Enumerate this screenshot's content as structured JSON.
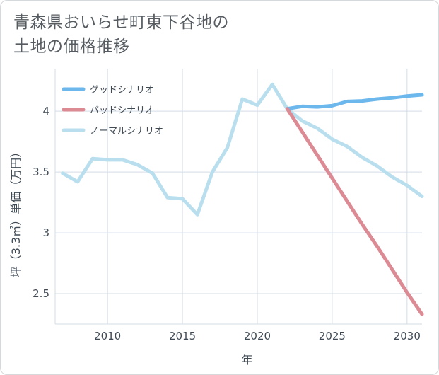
{
  "title_lines": [
    "青森県おいらせ町東下谷地の",
    "土地の価格推移"
  ],
  "chart_data": {
    "type": "line",
    "title": "青森県おいらせ町東下谷地の土地の価格推移",
    "xlabel": "年",
    "ylabel": "坪（3.3㎡）単価（万円）",
    "xlim": [
      2006.5,
      2031
    ],
    "ylim": [
      2.25,
      4.35
    ],
    "xticks": [
      2010,
      2015,
      2020,
      2025,
      2030
    ],
    "yticks": [
      2.5,
      3,
      3.5,
      4
    ],
    "ytick_labels": [
      "2.5",
      "3",
      "3.5",
      "4"
    ],
    "grid": true,
    "legend_position": "top-left",
    "series": [
      {
        "name": "グッドシナリオ",
        "color": "#6cb7ec",
        "x": [
          2022,
          2023,
          2024,
          2025,
          2026,
          2027,
          2028,
          2029,
          2030,
          2031
        ],
        "y": [
          4.02,
          4.04,
          4.035,
          4.045,
          4.08,
          4.085,
          4.1,
          4.11,
          4.125,
          4.135
        ]
      },
      {
        "name": "バッドシナリオ",
        "color": "#dc8a93",
        "x": [
          2022,
          2023,
          2024,
          2025,
          2026,
          2027,
          2028,
          2029,
          2030,
          2031
        ],
        "y": [
          4.02,
          3.83,
          3.64,
          3.45,
          3.26,
          3.07,
          2.89,
          2.7,
          2.51,
          2.33
        ]
      },
      {
        "name": "ノーマルシナリオ",
        "color": "#b9dfee",
        "x": [
          2007,
          2008,
          2009,
          2010,
          2011,
          2012,
          2013,
          2014,
          2015,
          2016,
          2017,
          2018,
          2019,
          2020,
          2021,
          2022,
          2023,
          2024,
          2025,
          2026,
          2027,
          2028,
          2029,
          2030,
          2031
        ],
        "y": [
          3.49,
          3.42,
          3.61,
          3.6,
          3.6,
          3.56,
          3.49,
          3.29,
          3.28,
          3.15,
          3.5,
          3.7,
          4.1,
          4.05,
          4.22,
          4.02,
          3.92,
          3.86,
          3.77,
          3.71,
          3.62,
          3.55,
          3.46,
          3.39,
          3.3
        ]
      }
    ]
  },
  "colors": {
    "grid": "#d3dde6",
    "text": "#3f4a55",
    "title": "#555b60"
  }
}
